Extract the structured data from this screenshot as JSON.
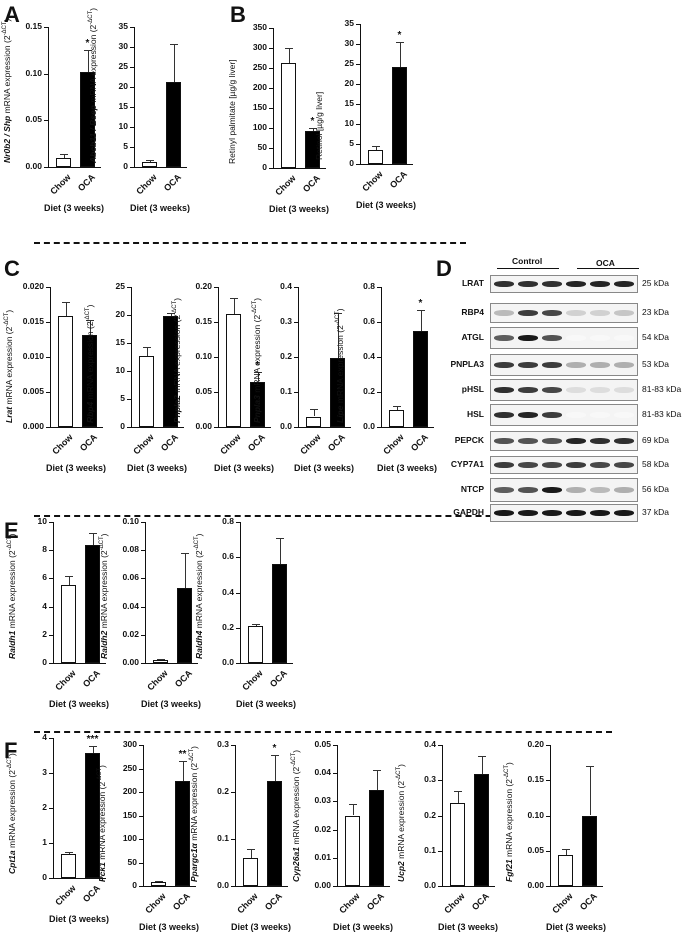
{
  "figure": {
    "panels": [
      "A",
      "B",
      "C",
      "D",
      "E",
      "F"
    ],
    "group_labels": {
      "chow": "Chow",
      "oca": "OCA"
    },
    "xlabel": "Diet (3 weeks)",
    "ylabel_suffix": " mRNA expression (2",
    "ylabel_exp": "-ΔCT",
    "ylabel_close": ")"
  },
  "chart_data": [
    {
      "panel": "A",
      "type": "bar",
      "gene": "Nr0b2 / Shp",
      "ylabel": "Nr0b2 / Shp mRNA expression (2^-ΔCT)",
      "xlabel": "Diet (3 weeks)",
      "categories": [
        "Chow",
        "OCA"
      ],
      "values": [
        0.01,
        0.102
      ],
      "errors": [
        0.004,
        0.023
      ],
      "significance": [
        "",
        "*"
      ],
      "ylim": [
        0,
        0.15
      ],
      "yticks": [
        "0.00",
        "0.05",
        "0.10",
        "0.15"
      ]
    },
    {
      "panel": "A",
      "type": "bar",
      "gene": "Abcb11 / Bsep",
      "ylabel": "Abcb11 / Bsep mRNA expression (2^-ΔCT)",
      "xlabel": "Diet (3 weeks)",
      "categories": [
        "Chow",
        "OCA"
      ],
      "values": [
        1.3,
        21.3
      ],
      "errors": [
        0.4,
        9.5
      ],
      "significance": [
        "",
        ""
      ],
      "ylim": [
        0,
        35
      ],
      "yticks": [
        "0",
        "5",
        "10",
        "15",
        "20",
        "25",
        "30",
        "35"
      ]
    },
    {
      "panel": "B",
      "type": "bar",
      "ylabel": "Retinyl palmitate [µg/g liver]",
      "xlabel": "Diet (3 weeks)",
      "categories": [
        "Chow",
        "OCA"
      ],
      "values": [
        263,
        93
      ],
      "errors": [
        38,
        8
      ],
      "significance": [
        "",
        "*"
      ],
      "ylim": [
        0,
        350
      ],
      "yticks": [
        "0",
        "50",
        "100",
        "150",
        "200",
        "250",
        "300",
        "350"
      ]
    },
    {
      "panel": "B",
      "type": "bar",
      "ylabel": "Retinol [µg/g liver]",
      "xlabel": "Diet (3 weeks)",
      "categories": [
        "Chow",
        "OCA"
      ],
      "values": [
        3.6,
        24.2
      ],
      "errors": [
        0.9,
        6.3
      ],
      "significance": [
        "",
        "*"
      ],
      "ylim": [
        0,
        35
      ],
      "yticks": [
        "0",
        "5",
        "10",
        "15",
        "20",
        "25",
        "30",
        "35"
      ]
    },
    {
      "panel": "C",
      "type": "bar",
      "gene": "Lrat",
      "ylabel": "Lrat mRNA expression (2^-ΔCT)",
      "xlabel": "Diet (3 weeks)",
      "categories": [
        "Chow",
        "OCA"
      ],
      "values": [
        0.0158,
        0.0131
      ],
      "errors": [
        0.0021,
        0.0022
      ],
      "significance": [
        "",
        ""
      ],
      "ylim": [
        0,
        0.02
      ],
      "yticks": [
        "0.000",
        "0.005",
        "0.010",
        "0.015",
        "0.020"
      ]
    },
    {
      "panel": "C",
      "type": "bar",
      "gene": "Rbp4",
      "ylabel": "Rbp4 mRNA expression (2^-ΔCT)",
      "xlabel": "Diet (3 weeks)",
      "categories": [
        "Chow",
        "OCA"
      ],
      "values": [
        12.7,
        19.8
      ],
      "errors": [
        1.5,
        0.6
      ],
      "significance": [
        "",
        ""
      ],
      "ylim": [
        0,
        25
      ],
      "yticks": [
        "0",
        "5",
        "10",
        "15",
        "20",
        "25"
      ]
    },
    {
      "panel": "C",
      "type": "bar",
      "gene": "Pnpla2",
      "ylabel": "Pnpla2 mRNA expression (2^-ΔCT)",
      "xlabel": "Diet (3 weeks)",
      "categories": [
        "Chow",
        "OCA"
      ],
      "values": [
        0.161,
        0.065
      ],
      "errors": [
        0.024,
        0.014
      ],
      "significance": [
        "",
        "*"
      ],
      "ylim": [
        0,
        0.2
      ],
      "yticks": [
        "0.00",
        "0.05",
        "0.10",
        "0.15",
        "0.20"
      ]
    },
    {
      "panel": "C",
      "type": "bar",
      "gene": "Pnpla3",
      "ylabel": "Pnpla3 mRNA expression (2^-ΔCT)",
      "xlabel": "Diet (3 weeks)",
      "categories": [
        "Chow",
        "OCA"
      ],
      "values": [
        0.03,
        0.198
      ],
      "errors": [
        0.022,
        0.128
      ],
      "significance": [
        "",
        ""
      ],
      "ylim": [
        0,
        0.4
      ],
      "yticks": [
        "0.0",
        "0.1",
        "0.2",
        "0.3",
        "0.4"
      ]
    },
    {
      "panel": "C",
      "type": "bar",
      "gene": "Lipe",
      "ylabel": "Lipe mRNA expression (2^-ΔCT)",
      "xlabel": "Diet (3 weeks)",
      "categories": [
        "Chow",
        "OCA"
      ],
      "values": [
        0.1,
        0.55
      ],
      "errors": [
        0.02,
        0.12
      ],
      "significance": [
        "",
        "*"
      ],
      "ylim": [
        0,
        0.8
      ],
      "yticks": [
        "0.0",
        "0.2",
        "0.4",
        "0.6",
        "0.8"
      ]
    },
    {
      "panel": "E",
      "type": "bar",
      "gene": "Raldh1",
      "ylabel": "Raldh1 mRNA expression (2^-ΔCT)",
      "xlabel": "Diet (3 weeks)",
      "categories": [
        "Chow",
        "OCA"
      ],
      "values": [
        5.5,
        8.4
      ],
      "errors": [
        0.7,
        0.8
      ],
      "significance": [
        "",
        ""
      ],
      "ylim": [
        0,
        10
      ],
      "yticks": [
        "0",
        "2",
        "4",
        "6",
        "8",
        "10"
      ]
    },
    {
      "panel": "E",
      "type": "bar",
      "gene": "Raldh2",
      "ylabel": "Raldh2 mRNA expression (2^-ΔCT)",
      "xlabel": "Diet (3 weeks)",
      "categories": [
        "Chow",
        "OCA"
      ],
      "values": [
        0.002,
        0.053
      ],
      "errors": [
        0.0005,
        0.025
      ],
      "significance": [
        "",
        ""
      ],
      "ylim": [
        0,
        0.1
      ],
      "yticks": [
        "0.00",
        "0.02",
        "0.04",
        "0.06",
        "0.08",
        "0.10"
      ]
    },
    {
      "panel": "E",
      "type": "bar",
      "gene": "Raldh4",
      "ylabel": "Raldh4 mRNA expression (2^-ΔCT)",
      "xlabel": "Diet (3 weeks)",
      "categories": [
        "Chow",
        "OCA"
      ],
      "values": [
        0.21,
        0.56
      ],
      "errors": [
        0.01,
        0.15
      ],
      "significance": [
        "",
        ""
      ],
      "ylim": [
        0,
        0.8
      ],
      "yticks": [
        "0.0",
        "0.2",
        "0.4",
        "0.6",
        "0.8"
      ]
    },
    {
      "panel": "F",
      "type": "bar",
      "gene": "Cpt1a",
      "ylabel": "Cpt1a mRNA expression (2^-ΔCT)",
      "xlabel": "Diet (3 weeks)",
      "categories": [
        "Chow",
        "OCA"
      ],
      "values": [
        0.68,
        3.58
      ],
      "errors": [
        0.05,
        0.2
      ],
      "significance": [
        "",
        "***"
      ],
      "ylim": [
        0,
        4
      ],
      "yticks": [
        "0",
        "1",
        "2",
        "3",
        "4"
      ]
    },
    {
      "panel": "F",
      "type": "bar",
      "gene": "Pck1",
      "ylabel": "Pck1 mRNA expression (2^-ΔCT)",
      "xlabel": "Diet (3 weeks)",
      "categories": [
        "Chow",
        "OCA"
      ],
      "values": [
        9,
        224
      ],
      "errors": [
        2,
        43
      ],
      "significance": [
        "",
        "**"
      ],
      "ylim": [
        0,
        300
      ],
      "yticks": [
        "0",
        "50",
        "100",
        "150",
        "200",
        "250",
        "300"
      ]
    },
    {
      "panel": "F",
      "type": "bar",
      "gene": "Ppargc1α",
      "ylabel": "Ppargc1α mRNA expression (2^-ΔCT)",
      "xlabel": "Diet (3 weeks)",
      "categories": [
        "Chow",
        "OCA"
      ],
      "values": [
        0.06,
        0.224
      ],
      "errors": [
        0.018,
        0.055
      ],
      "significance": [
        "",
        "*"
      ],
      "ylim": [
        0,
        0.3
      ],
      "yticks": [
        "0.0",
        "0.1",
        "0.2",
        "0.3"
      ]
    },
    {
      "panel": "F",
      "type": "bar",
      "gene": "Cyp26a1",
      "ylabel": "Cyp26a1 mRNA expression (2^-ΔCT)",
      "xlabel": "Diet (3 weeks)",
      "categories": [
        "Chow",
        "OCA"
      ],
      "values": [
        0.025,
        0.034
      ],
      "errors": [
        0.004,
        0.007
      ],
      "significance": [
        "",
        ""
      ],
      "ylim": [
        0,
        0.05
      ],
      "yticks": [
        "0.00",
        "0.01",
        "0.02",
        "0.03",
        "0.04",
        "0.05"
      ]
    },
    {
      "panel": "F",
      "type": "bar",
      "gene": "Ucp2",
      "ylabel": "Ucp2 mRNA expression (2^-ΔCT)",
      "xlabel": "Diet (3 weeks)",
      "categories": [
        "Chow",
        "OCA"
      ],
      "values": [
        0.236,
        0.318
      ],
      "errors": [
        0.033,
        0.05
      ],
      "significance": [
        "",
        ""
      ],
      "ylim": [
        0,
        0.4
      ],
      "yticks": [
        "0.0",
        "0.1",
        "0.2",
        "0.3",
        "0.4"
      ]
    },
    {
      "panel": "F",
      "type": "bar",
      "gene": "Fgf21",
      "ylabel": "Fgf21 mRNA expression (2^-ΔCT)",
      "xlabel": "Diet (3 weeks)",
      "categories": [
        "Chow",
        "OCA"
      ],
      "values": [
        0.044,
        0.1
      ],
      "errors": [
        0.009,
        0.07
      ],
      "significance": [
        "",
        ""
      ],
      "ylim": [
        0,
        0.2
      ],
      "yticks": [
        "0.00",
        "0.05",
        "0.10",
        "0.15",
        "0.20"
      ]
    }
  ],
  "western_blot": {
    "panel": "D",
    "groups": [
      {
        "label": "Control",
        "lanes": 3
      },
      {
        "label": "OCA",
        "lanes": 3
      }
    ],
    "rows": [
      {
        "name": "LRAT",
        "kda": "25 kDa",
        "intensity": [
          0.9,
          0.9,
          0.9,
          0.95,
          0.95,
          0.95
        ]
      },
      {
        "name": "RBP4",
        "kda": "23 kDa",
        "intensity": [
          0.3,
          0.85,
          0.8,
          0.2,
          0.2,
          0.25
        ]
      },
      {
        "name": "ATGL",
        "kda": "54 kDa",
        "intensity": [
          0.7,
          1.0,
          0.75,
          0.03,
          0.03,
          0.03
        ]
      },
      {
        "name": "PNPLA3",
        "kda": "53 kDa",
        "intensity": [
          0.85,
          0.85,
          0.85,
          0.35,
          0.35,
          0.35
        ]
      },
      {
        "name": "pHSL",
        "kda": "81-83 kDa",
        "intensity": [
          0.9,
          0.85,
          0.8,
          0.15,
          0.15,
          0.15
        ]
      },
      {
        "name": "HSL",
        "kda": "81-83 kDa",
        "intensity": [
          0.9,
          0.95,
          0.85,
          0.03,
          0.03,
          0.03
        ]
      },
      {
        "name": "PEPCK",
        "kda": "69 kDa",
        "intensity": [
          0.75,
          0.75,
          0.75,
          0.95,
          0.9,
          0.9
        ]
      },
      {
        "name": "CYP7A1",
        "kda": "58 kDa",
        "intensity": [
          0.85,
          0.8,
          0.8,
          0.85,
          0.8,
          0.8
        ]
      },
      {
        "name": "NTCP",
        "kda": "56 kDa",
        "intensity": [
          0.7,
          0.75,
          1.0,
          0.35,
          0.3,
          0.35
        ]
      },
      {
        "name": "GAPDH",
        "kda": "37 kDa",
        "intensity": [
          1.0,
          1.0,
          1.0,
          1.0,
          1.0,
          1.0
        ]
      }
    ]
  }
}
